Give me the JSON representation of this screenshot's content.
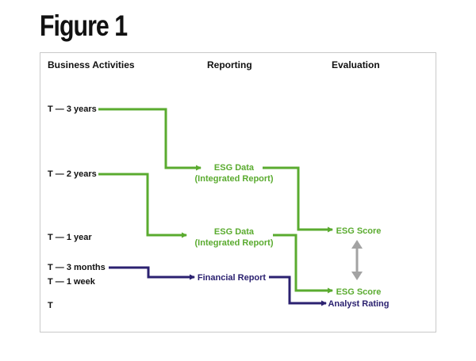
{
  "figure": {
    "title": "Figure 1"
  },
  "columns": {
    "business_activities": "Business Activities",
    "reporting": "Reporting",
    "evaluation": "Evaluation"
  },
  "timeline": {
    "t_3_years": "T — 3 years",
    "t_2_years": "T — 2 years",
    "t_1_year": "T — 1 year",
    "t_3_months": "T — 3 months",
    "t_1_week": "T — 1 week",
    "t": "T"
  },
  "reporting": {
    "esg_data_1_line1": "ESG Data",
    "esg_data_1_line2": "(Integrated Report)",
    "esg_data_2_line1": "ESG Data",
    "esg_data_2_line2": "(Integrated Report)",
    "financial_report": "Financial Report"
  },
  "evaluation": {
    "esg_score_1": "ESG Score",
    "esg_score_2": "ESG Score",
    "analyst_rating": "Analyst Rating"
  },
  "colors": {
    "green": "#5aab2f",
    "navy": "#2b2170",
    "gray": "#a3a3a3",
    "frame": "#c9c9c9"
  }
}
